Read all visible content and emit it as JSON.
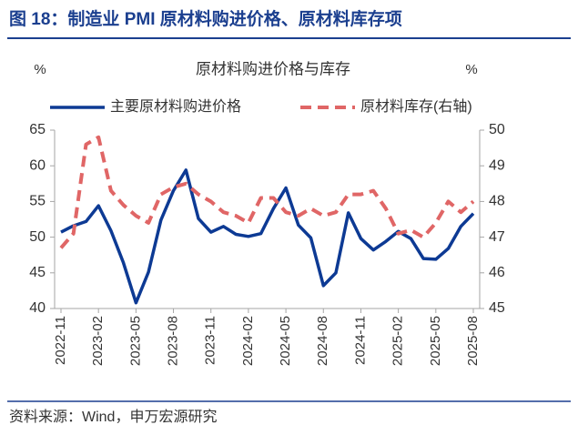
{
  "chart_data": {
    "type": "line",
    "title": "图 18：制造业 PMI 原材料购进价格、原材料库存项",
    "subtitle": "原材料购进价格与库存",
    "y_label": "%",
    "y2_label": "%",
    "source": "资料来源：Wind，申万宏源研究",
    "categories": [
      "2022-11",
      null,
      null,
      "2023-02",
      null,
      null,
      "2023-05",
      null,
      null,
      "2023-08",
      null,
      null,
      "2023-11",
      null,
      null,
      "2024-02",
      null,
      null,
      "2024-05",
      null,
      null,
      "2024-08",
      null,
      null,
      "2024-11",
      null,
      null,
      "2025-02",
      null,
      null,
      "2025-05",
      null,
      null,
      "2025-08"
    ],
    "series": [
      {
        "name": "主要原材料购进价格",
        "color": "#0d3a94",
        "dash": false,
        "values": [
          50.7,
          51.6,
          52.2,
          54.4,
          50.9,
          46.4,
          40.8,
          45.1,
          52.4,
          56.5,
          59.4,
          52.6,
          50.7,
          51.5,
          50.4,
          50.1,
          50.5,
          54.0,
          56.9,
          51.7,
          49.9,
          43.2,
          45.0,
          53.4,
          49.8,
          48.2,
          49.4,
          50.8,
          49.8,
          47.0,
          46.9,
          48.4,
          51.5,
          53.3
        ]
      },
      {
        "name": "原材料库存(右轴)",
        "color": "#e06666",
        "dash": true,
        "axis": "y2",
        "values": [
          46.7,
          47.1,
          49.6,
          49.8,
          48.3,
          47.9,
          47.6,
          47.4,
          48.2,
          48.4,
          48.5,
          48.2,
          48.0,
          47.7,
          47.6,
          47.4,
          48.1,
          48.1,
          47.7,
          47.6,
          47.8,
          47.6,
          47.7,
          48.2,
          48.2,
          48.3,
          47.8,
          47.1,
          47.2,
          47.0,
          47.4,
          48.0,
          47.7,
          48.0
        ]
      }
    ],
    "ylim": [
      40,
      65
    ],
    "yticks": [
      40,
      45,
      50,
      55,
      60,
      65
    ],
    "y2lim": [
      45,
      50
    ],
    "y2ticks": [
      45,
      46,
      47,
      48,
      49,
      50
    ],
    "grid": false
  }
}
